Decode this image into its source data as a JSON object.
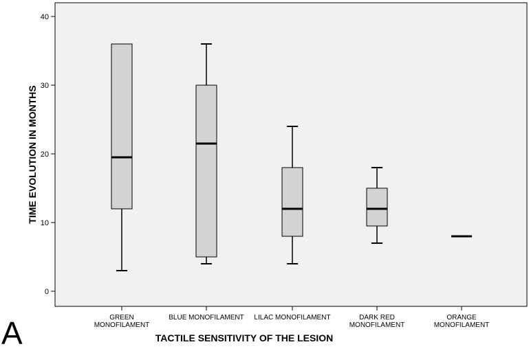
{
  "panel_label": "A",
  "chart_data": {
    "type": "box",
    "xlabel": "TACTILE SENSITIVITY OF THE LESION",
    "ylabel": "TIME EVOLUTION IN MONTHS",
    "ylim": [
      -2,
      42
    ],
    "yticks": [
      0,
      10,
      20,
      30,
      40
    ],
    "grid": false,
    "colors": {
      "box_fill": "#d3d3d3",
      "plot_bg": "#f1f1f1",
      "stroke": "#000000"
    },
    "categories": [
      [
        "GREEN",
        "MONOFILAMENT"
      ],
      [
        "BLUE MONOFILAMENT"
      ],
      [
        "LILAC MONOFILAMENT"
      ],
      [
        "DARK RED",
        "MONOFILAMENT"
      ],
      [
        "ORANGE",
        "MONOFILAMENT"
      ]
    ],
    "boxes": [
      {
        "min": 3,
        "q1": 12,
        "median": 19.5,
        "q3": 36,
        "max": 36
      },
      {
        "min": 4,
        "q1": 5,
        "median": 21.5,
        "q3": 30,
        "max": 36
      },
      {
        "min": 4,
        "q1": 8,
        "median": 12,
        "q3": 18,
        "max": 24
      },
      {
        "min": 7,
        "q1": 9.5,
        "median": 12,
        "q3": 15,
        "max": 18
      },
      {
        "min": 8,
        "q1": 8,
        "median": 8,
        "q3": 8,
        "max": 8
      }
    ]
  }
}
